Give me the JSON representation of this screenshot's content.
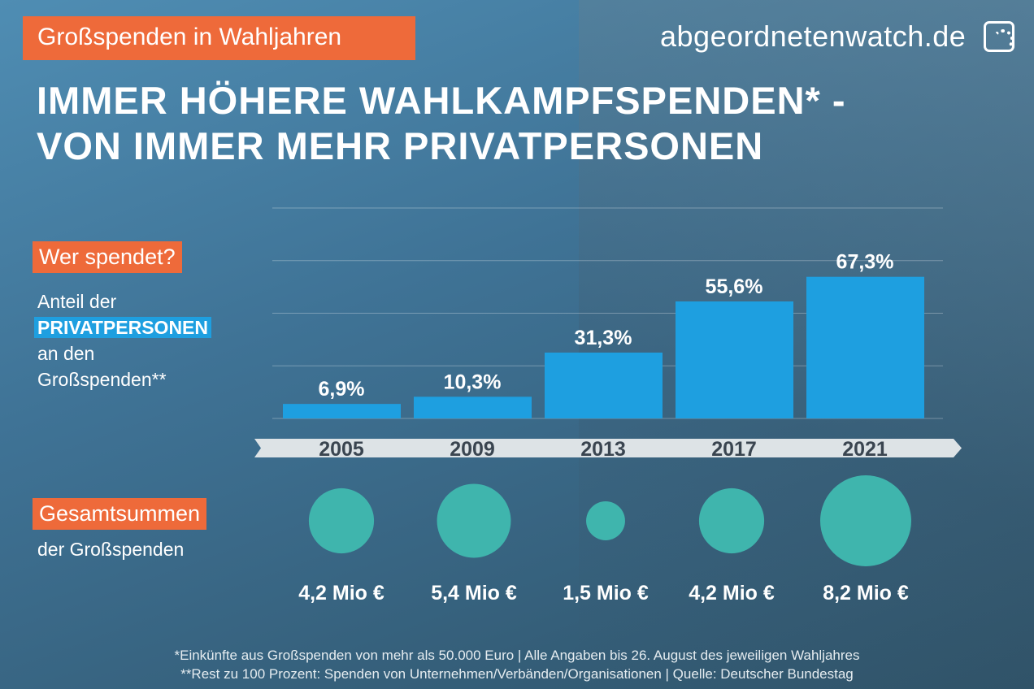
{
  "badge": "Großspenden in Wahljahren",
  "logo": {
    "text": "abgeordnetenwatch.de",
    "icon": "speedometer-icon"
  },
  "title": [
    "IMMER HÖHERE WAHLKAMPFSPENDEN* -",
    "VON IMMER MEHR PRIVATPERSONEN"
  ],
  "who": {
    "tag": "Wer spendet?",
    "line1": "Anteil der",
    "highlight": "PRIVATPERSONEN",
    "line3": "an den",
    "line4": "Großspenden**"
  },
  "totals": {
    "tag": "Gesamtsummen",
    "sub": "der Großspenden"
  },
  "colors": {
    "accent": "#ee6a3a",
    "bar": "#1e9fe0",
    "bubble": "#3fb5ad",
    "band": "#dde3e6"
  },
  "chart_data": [
    {
      "type": "bar",
      "categories": [
        "2005",
        "2009",
        "2013",
        "2017",
        "2021"
      ],
      "values": [
        6.9,
        10.3,
        31.3,
        55.6,
        67.3
      ],
      "labels": [
        "6,9%",
        "10,3%",
        "31,3%",
        "55,6%",
        "67,3%"
      ],
      "ylim": [
        0,
        100
      ],
      "grid": true
    },
    {
      "type": "bubble",
      "categories": [
        "2005",
        "2009",
        "2013",
        "2017",
        "2021"
      ],
      "values": [
        4.2,
        5.4,
        1.5,
        4.2,
        8.2
      ],
      "labels": [
        "4,2 Mio €",
        "5,4 Mio €",
        "1,5 Mio €",
        "4,2 Mio €",
        "8,2 Mio €"
      ]
    }
  ],
  "footnotes": [
    "*Einkünfte aus Großspenden von mehr als 50.000 Euro | Alle Angaben bis 26. August des jeweiligen Wahljahres",
    "**Rest zu 100 Prozent: Spenden von Unternehmen/Verbänden/Organisationen | Quelle: Deutscher Bundestag"
  ]
}
